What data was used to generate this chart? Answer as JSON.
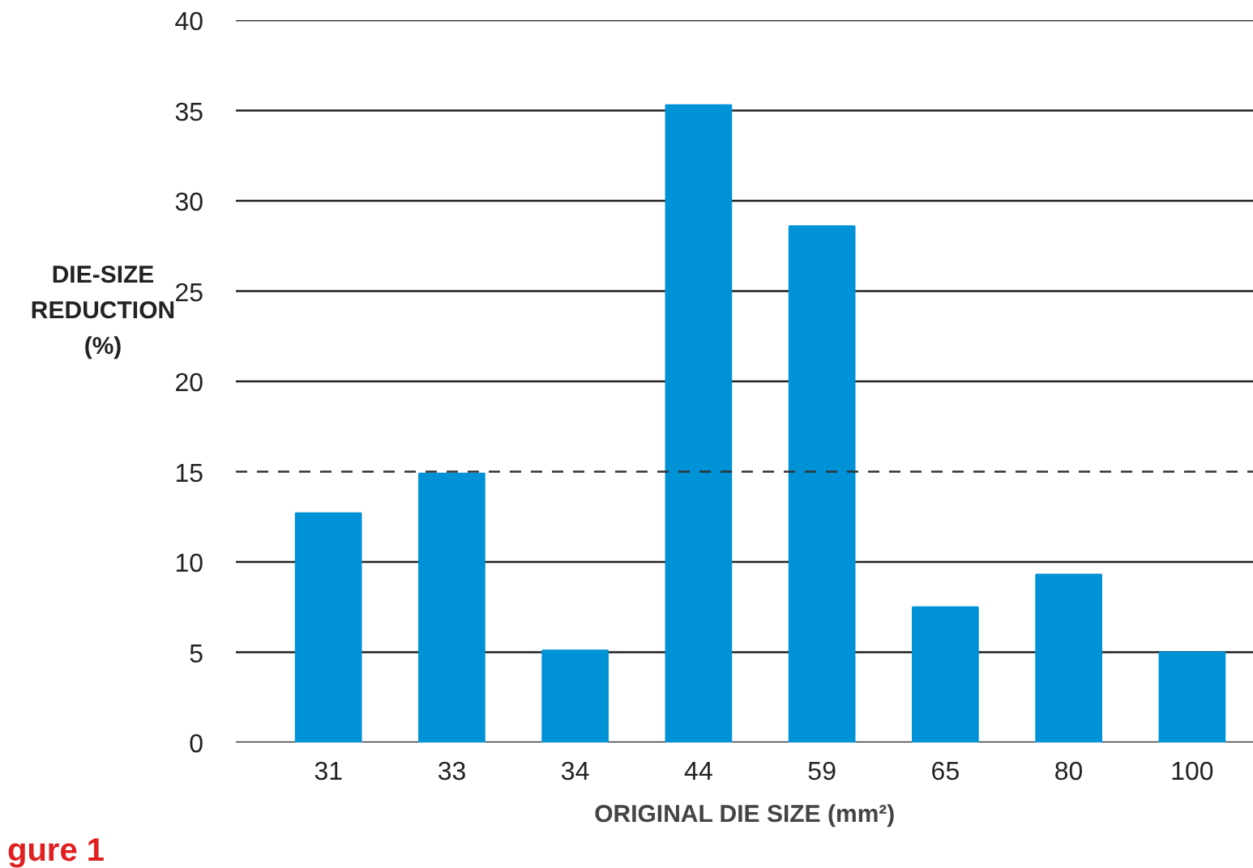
{
  "chart_data": {
    "type": "bar",
    "xlabel": "ORIGINAL DIE SIZE (mm²)",
    "ylabel": "DIE-SIZE REDUCTION (%)",
    "categories": [
      "31",
      "33",
      "34",
      "44",
      "59",
      "65",
      "80",
      "100"
    ],
    "values": [
      12.7,
      14.9,
      5.1,
      35.3,
      28.6,
      7.5,
      9.3,
      5.0
    ],
    "color": "#0092d6",
    "ylim": [
      0,
      40
    ],
    "yticks": [
      0,
      5,
      10,
      15,
      20,
      25,
      30,
      35,
      40
    ],
    "grid": "y",
    "ref_lines": [
      {
        "axis": "y",
        "value": 15,
        "line_style": "dashed",
        "color": "#333333"
      }
    ],
    "annotations": [
      "gure 1"
    ]
  }
}
